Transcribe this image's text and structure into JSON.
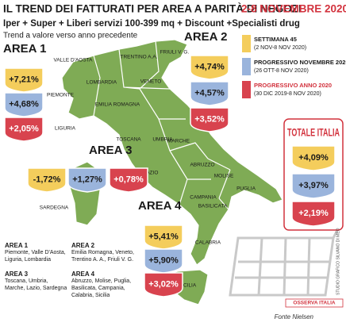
{
  "title": {
    "main": "IL TREND DEI FATTURATI PER AREA A PARITÀ DI NEGOZI",
    "dates": "2-8 NOVEMBRE 2020"
  },
  "subtitle": "Iper + Super + Liberi servizi 100-399 mq + Discount +Specialisti drug",
  "note": "Trend a valore verso anno precedente",
  "legend": {
    "items": [
      {
        "label": "SETTIMANA 45",
        "period": "(2 NOV-8 NOV 2020)"
      },
      {
        "label": "PROGRESSIVO NOVEMBRE 2020",
        "period": "(26 OTT-8 NOV 2020)"
      },
      {
        "label": "PROGRESSIVO ANNO 2020",
        "period": "(30 DIC 2019-8 NOV 2020)"
      }
    ]
  },
  "areas": [
    {
      "name": "AREA 1",
      "values": [
        "+7,21%",
        "+4,68%",
        "+2,05%"
      ]
    },
    {
      "name": "AREA 2",
      "values": [
        "+4,74%",
        "+4,57%",
        "+3,52%"
      ]
    },
    {
      "name": "AREA 3",
      "values": [
        "-1,72%",
        "+1,27%",
        "+0,78%"
      ]
    },
    {
      "name": "AREA 4",
      "values": [
        "+5,41%",
        "+5,90%",
        "+3,02%"
      ]
    }
  ],
  "total": {
    "name": "TOTALE ITALIA",
    "values": [
      "+4,09%",
      "+3,97%",
      "+2,19%"
    ]
  },
  "regions": [
    "VALLE D'AOSTA",
    "PIEMONTE",
    "LIGURIA",
    "LOMBARDIA",
    "TRENTINO A.A.",
    "FRIULI V. G.",
    "VENETO",
    "EMILIA ROMAGNA",
    "TOSCANA",
    "UMBRIA",
    "MARCHE",
    "LAZIO",
    "ABRUZZO",
    "MOLISE",
    "PUGLIA",
    "CAMPANIA",
    "BASILICATA",
    "CALABRIA",
    "SARDEGNA",
    "SICILIA"
  ],
  "area_notes": [
    {
      "name": "AREA 1",
      "regions": "Piemonte, Valle D'Aosta, Liguria, Lombardia"
    },
    {
      "name": "AREA 2",
      "regions": "Emilia Romagna, Veneto, Trentino A. A., Friuli V. G."
    },
    {
      "name": "AREA 3",
      "regions": "Toscana, Umbria, Marche, Lazio, Sardegna"
    },
    {
      "name": "AREA 4",
      "regions": "Abruzzo, Molise, Puglia, Basilicata, Campania, Calabria, Sicilia"
    }
  ],
  "source": "Fonte Nielsen",
  "credit": "STUDIO GRAFICO SILVANO DI MEO",
  "logo": "OSSERVA ITALIA"
}
